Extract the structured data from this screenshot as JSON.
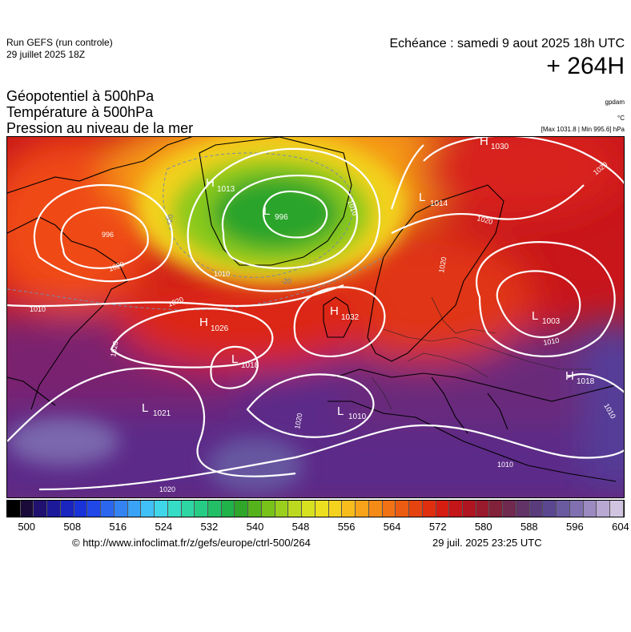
{
  "header": {
    "run": "Run GEFS (run controle)",
    "run_date": "29 juillet 2025 18Z",
    "echeance": "Echéance : samedi 9 aout 2025 18h UTC",
    "lead": "+ 264H",
    "params": [
      "Géopotentiel à 500hPa",
      "Température à 500hPa",
      "Pression au niveau de la mer"
    ],
    "units": {
      "geopotential": "gpdam",
      "temperature": "°C",
      "pressure": "[Max 1031.8 | Min 995.6] hPa"
    }
  },
  "map": {
    "pressure_centers": [
      {
        "type": "H",
        "value": "1013"
      },
      {
        "type": "L",
        "value": "996"
      },
      {
        "type": "H",
        "value": "1030"
      },
      {
        "type": "L",
        "value": "1014"
      },
      {
        "type": "H",
        "value": "1026"
      },
      {
        "type": "H",
        "value": "1032"
      },
      {
        "type": "L",
        "value": "1018"
      },
      {
        "type": "L",
        "value": "1003"
      },
      {
        "type": "H",
        "value": "1018"
      },
      {
        "type": "L",
        "value": "1021"
      },
      {
        "type": "L",
        "value": "1010"
      }
    ],
    "isobar_labels": [
      "996",
      "1010",
      "1010",
      "1010",
      "1020",
      "1020",
      "1020",
      "1020",
      "1020",
      "1020",
      "1010",
      "1010",
      "1010",
      "1020",
      "1020"
    ],
    "temperature_labels": [
      "-20",
      "-20"
    ]
  },
  "scale": {
    "colors": [
      "#000000",
      "#1a0a3a",
      "#201070",
      "#1c1a9a",
      "#1a24bf",
      "#1a33d9",
      "#2048e8",
      "#2b66ef",
      "#3384f2",
      "#3ba3f5",
      "#40c0f6",
      "#3ed6e8",
      "#36dcc5",
      "#2ed6a3",
      "#27cc84",
      "#22bf66",
      "#20b34a",
      "#2fa62a",
      "#55b21c",
      "#78c21a",
      "#9acf1d",
      "#bcd91f",
      "#d8e11f",
      "#ecdf1f",
      "#f5d21e",
      "#f8bc1c",
      "#f8a319",
      "#f58b17",
      "#f17214",
      "#ec5b12",
      "#e54410",
      "#df2f0f",
      "#d51d12",
      "#c41519",
      "#ae1521",
      "#981a2c",
      "#82213a",
      "#702a50",
      "#623366",
      "#5a3b7c",
      "#5a4790",
      "#6a5aa0",
      "#8070b0",
      "#9a8ac0",
      "#b8a8d2",
      "#d0c4e0"
    ],
    "tick_labels": [
      "500",
      "508",
      "516",
      "524",
      "532",
      "540",
      "548",
      "556",
      "564",
      "572",
      "580",
      "588",
      "596",
      "604"
    ]
  },
  "footer": {
    "credit": "© http://www.infoclimat.fr/z/gefs/europe/ctrl-500/264",
    "generated": "29 juil. 2025 23:25 UTC"
  }
}
